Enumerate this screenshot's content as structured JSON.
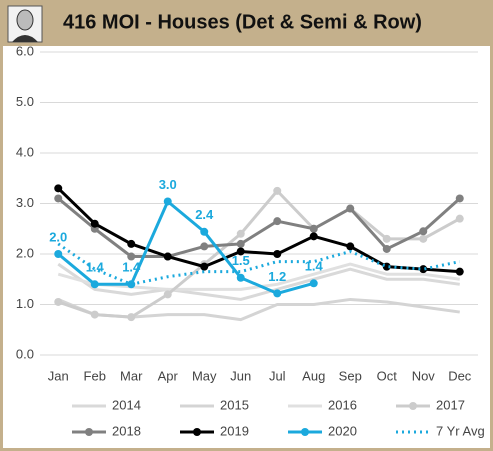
{
  "chart_data": {
    "type": "line",
    "title": "416 MOI - Houses (Det & Semi & Row)",
    "categories": [
      "Jan",
      "Feb",
      "Mar",
      "Apr",
      "May",
      "Jun",
      "Jul",
      "Aug",
      "Sep",
      "Oct",
      "Nov",
      "Dec"
    ],
    "ylim": [
      0,
      6
    ],
    "yticks": [
      {
        "value": 0,
        "label": "0.0"
      },
      {
        "value": 1,
        "label": "1.0"
      },
      {
        "value": 2,
        "label": "2.0"
      },
      {
        "value": 3,
        "label": "3.0"
      },
      {
        "value": 4,
        "label": "4.0"
      },
      {
        "value": 5,
        "label": "5.0"
      },
      {
        "value": 6,
        "label": "6.0"
      }
    ],
    "grid": true,
    "legend": "bottom",
    "series": [
      {
        "name": "2014",
        "color": "#d9d9d9",
        "markers": false,
        "dash": false,
        "values": [
          1.8,
          1.3,
          1.2,
          1.3,
          1.2,
          1.1,
          1.3,
          1.5,
          1.7,
          1.5,
          1.5,
          1.4
        ]
      },
      {
        "name": "2015",
        "color": "#d4d4d4",
        "markers": false,
        "dash": false,
        "values": [
          1.1,
          0.8,
          0.75,
          0.8,
          0.8,
          0.7,
          1.0,
          1.0,
          1.1,
          1.05,
          0.95,
          0.85
        ]
      },
      {
        "name": "2016",
        "color": "#e0e0e0",
        "markers": false,
        "dash": false,
        "values": [
          1.6,
          1.4,
          1.35,
          1.3,
          1.3,
          1.3,
          1.4,
          1.6,
          1.8,
          1.6,
          1.6,
          1.5
        ]
      },
      {
        "name": "2017",
        "color": "#cccccc",
        "markers": true,
        "dash": false,
        "values": [
          1.05,
          0.8,
          0.75,
          1.2,
          1.8,
          2.4,
          3.25,
          2.5,
          2.9,
          2.3,
          2.3,
          2.7
        ]
      },
      {
        "name": "2018",
        "color": "#808080",
        "markers": true,
        "dash": false,
        "values": [
          3.1,
          2.5,
          1.95,
          1.95,
          2.15,
          2.2,
          2.65,
          2.5,
          2.9,
          2.1,
          2.45,
          3.1
        ]
      },
      {
        "name": "2019",
        "color": "#000000",
        "markers": true,
        "dash": false,
        "values": [
          3.3,
          2.6,
          2.2,
          1.95,
          1.75,
          2.05,
          2.0,
          2.35,
          2.15,
          1.75,
          1.7,
          1.65
        ]
      },
      {
        "name": "2020",
        "color": "#1ba9dd",
        "markers": true,
        "dash": false,
        "values": [
          2.0,
          1.4,
          1.4,
          3.04,
          2.44,
          1.53,
          1.22,
          1.42,
          null,
          null,
          null,
          null
        ],
        "value_labels": [
          "2.0",
          "1.4",
          "1.4",
          "3.0",
          "2.4",
          "1.5",
          "1.2",
          "1.4",
          null,
          null,
          null,
          null
        ]
      },
      {
        "name": "7 Yr Avg",
        "color": "#1ba9dd",
        "markers": false,
        "dash": true,
        "values": [
          2.2,
          1.7,
          1.4,
          1.55,
          1.65,
          1.65,
          1.85,
          1.85,
          2.05,
          1.75,
          1.7,
          1.85
        ]
      }
    ]
  }
}
